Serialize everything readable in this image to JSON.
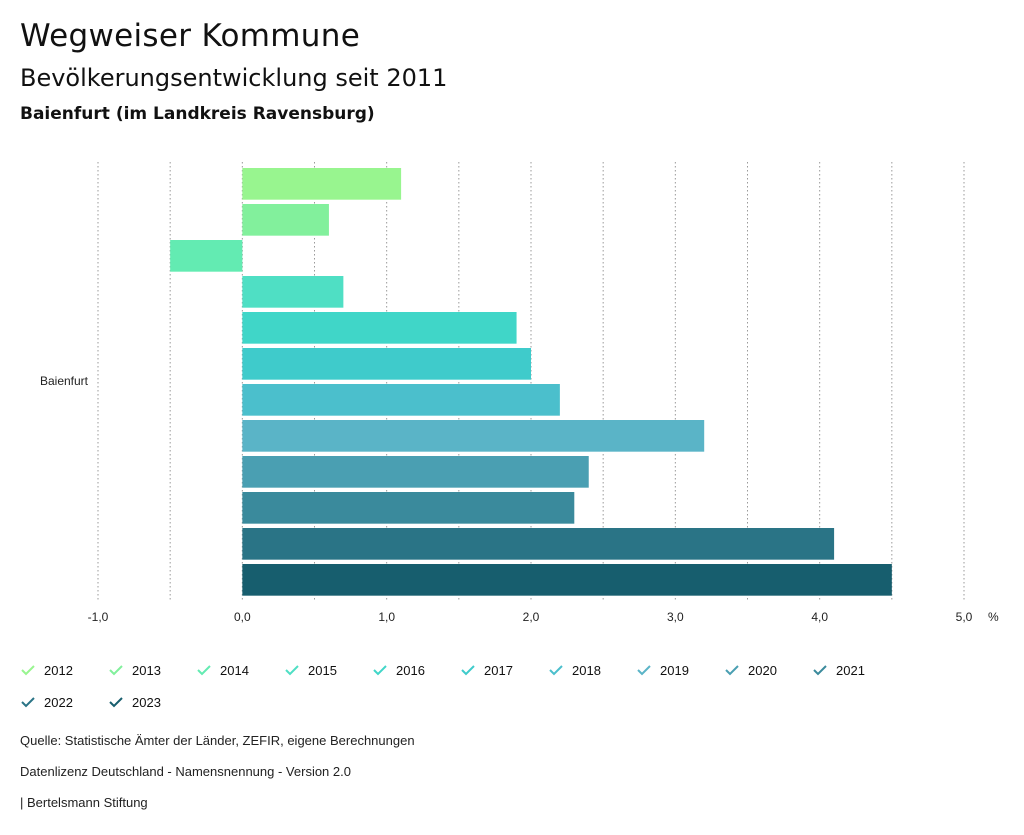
{
  "header": {
    "title": "Wegweiser Kommune",
    "subtitle": "Bevölkerungsentwicklung seit 2011",
    "region": "Baienfurt (im Landkreis Ravensburg)"
  },
  "chart_data": {
    "type": "bar",
    "orientation": "horizontal",
    "category": "Baienfurt",
    "unit": "%",
    "xlim": [
      -1.0,
      5.0
    ],
    "ticks": [
      "-1,0",
      "0,0",
      "1,0",
      "2,0",
      "3,0",
      "4,0",
      "5,0"
    ],
    "tick_values": [
      -1,
      0,
      1,
      2,
      3,
      4,
      5
    ],
    "grid": true,
    "series": [
      {
        "name": "2012",
        "value": 1.1,
        "color": "#98f58f"
      },
      {
        "name": "2013",
        "value": 0.6,
        "color": "#82f09c"
      },
      {
        "name": "2014",
        "value": -0.5,
        "color": "#63ebb2"
      },
      {
        "name": "2015",
        "value": 0.7,
        "color": "#4fdfc4"
      },
      {
        "name": "2016",
        "value": 1.9,
        "color": "#40d6c8"
      },
      {
        "name": "2017",
        "value": 2.0,
        "color": "#3fcbcb"
      },
      {
        "name": "2018",
        "value": 2.2,
        "color": "#4bbfcc"
      },
      {
        "name": "2019",
        "value": 3.2,
        "color": "#5ab4c7"
      },
      {
        "name": "2020",
        "value": 2.4,
        "color": "#4a9fb2"
      },
      {
        "name": "2021",
        "value": 2.3,
        "color": "#3a8a9c"
      },
      {
        "name": "2022",
        "value": 4.1,
        "color": "#2a7486"
      },
      {
        "name": "2023",
        "value": 4.5,
        "color": "#175e6e"
      }
    ]
  },
  "footer": {
    "source": "Quelle: Statistische Ämter der Länder, ZEFIR, eigene Berechnungen",
    "license": "Datenlizenz Deutschland - Namensnennung - Version 2.0",
    "publisher": "| Bertelsmann Stiftung"
  }
}
